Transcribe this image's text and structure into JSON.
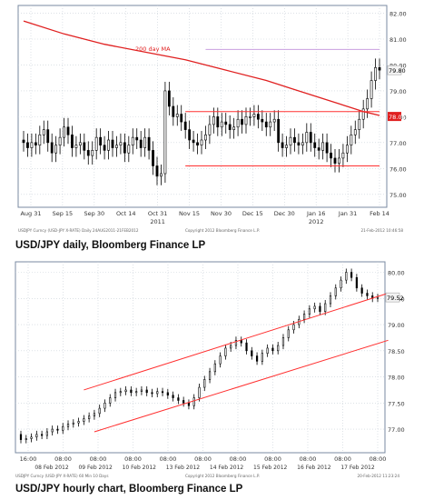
{
  "captions": {
    "daily": "USD/JPY daily, Bloomberg Finance LP",
    "hourly": "USD/JPY hourly chart, Bloomberg Finance LP"
  },
  "colors": {
    "ma": "#e02020",
    "channel": "#ff3030",
    "ceiling": "#c9a0e0",
    "candle": "#000000",
    "price_tag_bg": "#e02020",
    "price_tag_bg_hourly": "#f2f2f2",
    "grid": "#c8d0d8",
    "frame": "#7a8aa0"
  },
  "chart_data": [
    {
      "type": "candlestick",
      "title": "USD/JPY daily, Bloomberg Finance LP",
      "annotation": "200 day MA",
      "last_price_label": "78.01",
      "last_close_label": "79.80",
      "ylim": [
        74.5,
        82.3
      ],
      "y_ticks": [
        "75.00",
        "76.00",
        "77.00",
        "78.00",
        "79.00",
        "80.00",
        "81.00",
        "82.00"
      ],
      "x_ticks": [
        "Aug 31",
        "Sep 15",
        "Sep 30",
        "Oct 14",
        "Oct 31",
        "Nov 15",
        "Nov 30",
        "Dec 15",
        "Dec 30",
        "Jan 16",
        "Jan 31",
        "Feb 14"
      ],
      "x_year_labels": [
        {
          "label": "2011",
          "at": "Oct 31"
        },
        {
          "label": "2012",
          "at": "Jan 16"
        }
      ],
      "footer_left": "USDJPY Curncy (USD-JPY X-RATE) Daily 24AUG2011-21FEB2012",
      "footer_mid": "Copyright 2012 Bloomberg Finance L.P.",
      "footer_right": "21-Feb-2012 10:46:58",
      "closes": [
        77.0,
        76.8,
        77.0,
        76.9,
        77.3,
        77.5,
        77.0,
        76.6,
        76.9,
        77.2,
        77.6,
        77.3,
        76.8,
        76.9,
        77.0,
        76.7,
        76.5,
        76.7,
        77.2,
        76.9,
        76.7,
        77.1,
        76.8,
        76.9,
        77.0,
        76.6,
        76.9,
        77.2,
        77.1,
        76.8,
        77.2,
        76.7,
        76.1,
        75.7,
        75.8,
        79.0,
        78.4,
        78.0,
        78.1,
        77.8,
        77.5,
        77.1,
        77.0,
        76.9,
        77.1,
        77.3,
        77.7,
        78.0,
        77.6,
        77.8,
        77.7,
        77.5,
        77.6,
        77.9,
        77.7,
        78.0,
        78.0,
        78.1,
        77.9,
        77.8,
        77.6,
        77.8,
        77.9,
        77.0,
        76.8,
        76.9,
        77.2,
        77.0,
        76.9,
        77.0,
        77.4,
        77.0,
        76.8,
        76.7,
        77.0,
        76.6,
        76.4,
        76.2,
        76.4,
        76.6,
        76.9,
        77.3,
        77.5,
        77.9,
        78.3,
        78.7,
        79.4,
        79.9,
        79.8
      ],
      "moving_average": [
        {
          "x": 0,
          "y": 81.7
        },
        {
          "x": 10,
          "y": 81.2
        },
        {
          "x": 20,
          "y": 80.8
        },
        {
          "x": 30,
          "y": 80.5
        },
        {
          "x": 40,
          "y": 80.2
        },
        {
          "x": 50,
          "y": 79.8
        },
        {
          "x": 60,
          "y": 79.4
        },
        {
          "x": 66,
          "y": 79.1
        },
        {
          "x": 72,
          "y": 78.8
        },
        {
          "x": 78,
          "y": 78.5
        },
        {
          "x": 84,
          "y": 78.2
        },
        {
          "x": 88,
          "y": 78.05
        }
      ],
      "lines": [
        {
          "name": "upper range",
          "y": 78.2,
          "x_from": 40,
          "x_to": 88
        },
        {
          "name": "lower range",
          "y": 76.1,
          "x_from": 40,
          "x_to": 88
        },
        {
          "name": "ceiling",
          "y": 80.6,
          "x_from": 45,
          "x_to": 88
        }
      ]
    },
    {
      "type": "candlestick",
      "title": "USD/JPY hourly chart, Bloomberg Finance LP",
      "last_price_label": "79.52",
      "ylim": [
        76.55,
        80.2
      ],
      "y_ticks": [
        "77.00",
        "77.50",
        "78.00",
        "78.50",
        "79.00",
        "79.50",
        "80.00"
      ],
      "x_ticks": [
        "16:00",
        "08:00",
        "08:00",
        "08:00",
        "08:00",
        "08:00",
        "08:00",
        "08:00",
        "08:00",
        "08:00",
        "08:00"
      ],
      "x_dates": [
        "08 Feb 2012",
        "09 Feb 2012",
        "10 Feb 2012",
        "13 Feb 2012",
        "14 Feb 2012",
        "15 Feb 2012",
        "16 Feb 2012",
        "17 Feb 2012"
      ],
      "footer_left": "USDJPY Curncy (USD-JPY X-RATE) 60 Min 10 Days",
      "footer_mid": "Copyright 2012 Bloomberg Finance L.P.",
      "footer_right": "20-Feb-2012 11:23:24",
      "closes": [
        76.8,
        76.82,
        76.85,
        76.9,
        76.88,
        76.95,
        77.0,
        76.98,
        77.05,
        77.1,
        77.12,
        77.15,
        77.2,
        77.25,
        77.3,
        77.4,
        77.5,
        77.6,
        77.7,
        77.72,
        77.75,
        77.7,
        77.72,
        77.75,
        77.7,
        77.68,
        77.72,
        77.7,
        77.65,
        77.6,
        77.55,
        77.5,
        77.45,
        77.6,
        77.8,
        77.95,
        78.1,
        78.25,
        78.4,
        78.55,
        78.6,
        78.7,
        78.65,
        78.5,
        78.4,
        78.3,
        78.45,
        78.55,
        78.5,
        78.6,
        78.75,
        78.9,
        79.0,
        79.1,
        79.2,
        79.3,
        79.35,
        79.25,
        79.4,
        79.55,
        79.7,
        79.85,
        80.0,
        79.9,
        79.7,
        79.6,
        79.55,
        79.5,
        79.52
      ],
      "lines": [
        {
          "name": "upper channel",
          "from": [
            12,
            77.75
          ],
          "to": [
            70,
            79.6
          ]
        },
        {
          "name": "lower channel",
          "from": [
            14,
            76.95
          ],
          "to": [
            70,
            78.7
          ]
        }
      ]
    }
  ]
}
